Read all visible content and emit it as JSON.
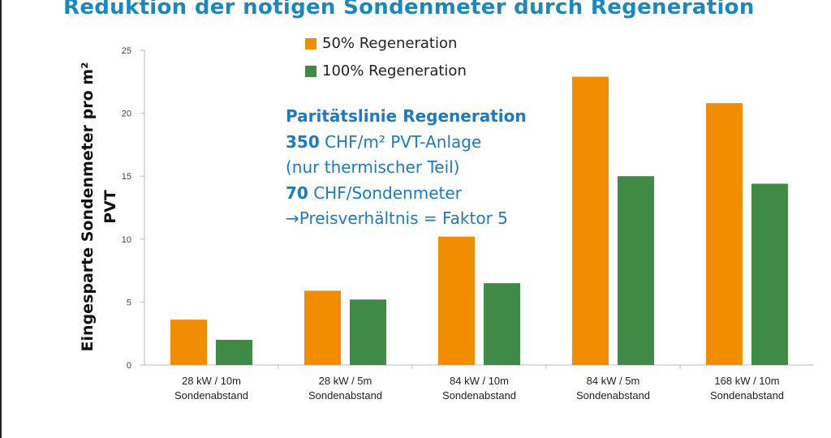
{
  "chart_data": {
    "type": "bar",
    "title": "Reduktion der nötigen Sondenmeter durch Regeneration",
    "ylabel": "Eingesparte Sondenmeter pro m² PVT",
    "xlabel": "",
    "ylim": [
      0,
      25
    ],
    "yticks": [
      "0",
      "5",
      "10",
      "15",
      "20",
      "25"
    ],
    "categories": [
      [
        "28 kW / 10m",
        "Sondenabstand"
      ],
      [
        "28 kW / 5m",
        "Sondenabstand"
      ],
      [
        "84 kW / 10m",
        "Sondenabstand"
      ],
      [
        "84 kW / 5m",
        "Sondenabstand"
      ],
      [
        "168 kW / 10m",
        "Sondenabstand"
      ]
    ],
    "series": [
      {
        "name": "50% Regeneration",
        "color": "#f28c00",
        "values": [
          3.6,
          5.9,
          10.2,
          22.9,
          20.8
        ]
      },
      {
        "name": "100% Regeneration",
        "color": "#3f8a44",
        "values": [
          2.0,
          5.2,
          6.5,
          15.0,
          14.4
        ]
      }
    ],
    "legend_position": "top-center",
    "annotation": {
      "l1": "Paritätslinie Regeneration",
      "l2b": "350",
      "l2": " CHF/m² PVT-Anlage",
      "l3": "(nur thermischer Teil)",
      "l4b": "70",
      "l4": " CHF/Sondenmeter",
      "l5": "→Preisverhältnis = Faktor 5"
    }
  }
}
